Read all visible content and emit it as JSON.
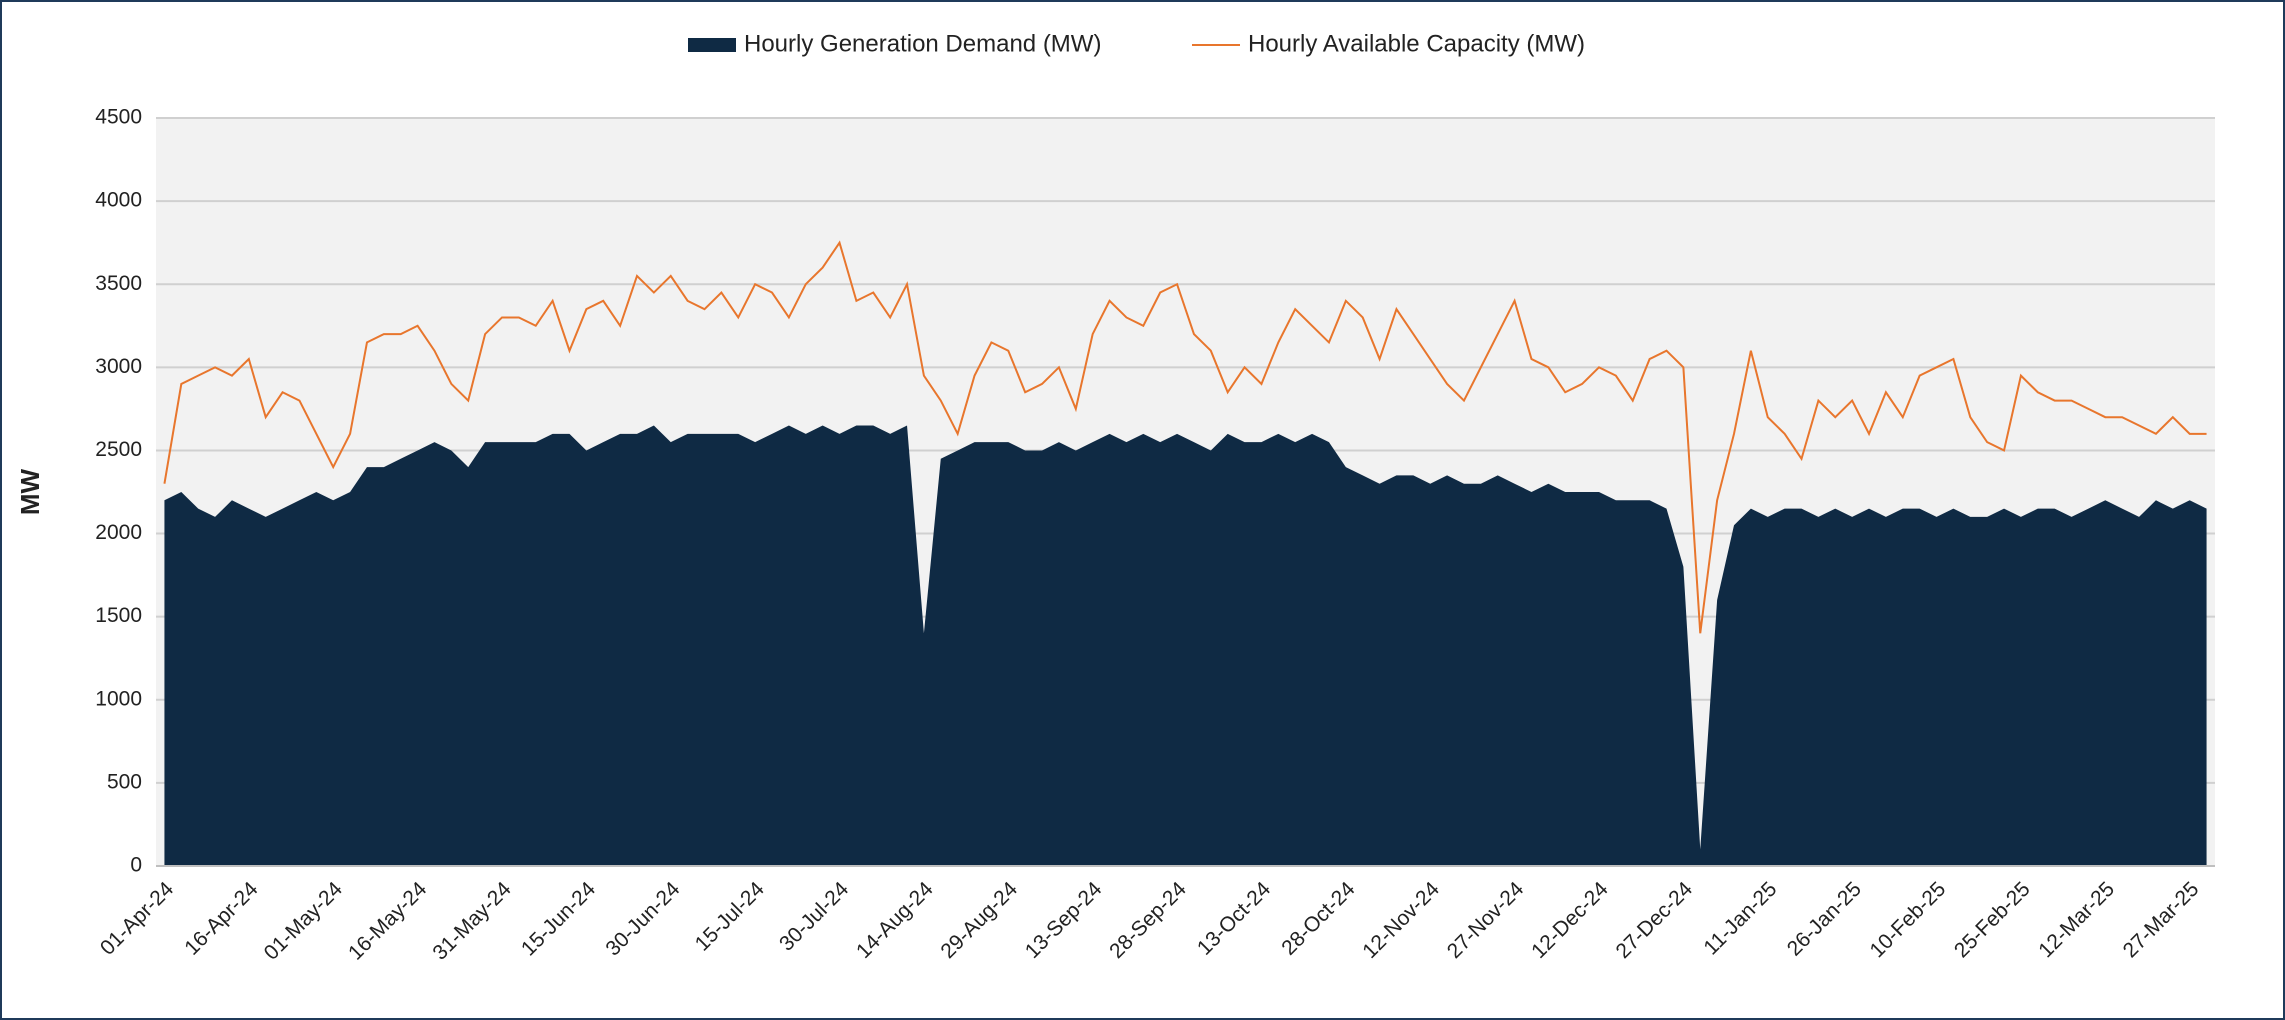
{
  "chart_data": {
    "type": "area-line",
    "y_label": "MW",
    "categories": [
      "01-Apr-24",
      null,
      null,
      null,
      null,
      "16-Apr-24",
      null,
      null,
      null,
      null,
      "01-May-24",
      null,
      null,
      null,
      null,
      "16-May-24",
      null,
      null,
      null,
      null,
      "31-May-24",
      null,
      null,
      null,
      null,
      "15-Jun-24",
      null,
      null,
      null,
      null,
      "30-Jun-24",
      null,
      null,
      null,
      null,
      "15-Jul-24",
      null,
      null,
      null,
      null,
      "30-Jul-24",
      null,
      null,
      null,
      null,
      "14-Aug-24",
      null,
      null,
      null,
      null,
      "29-Aug-24",
      null,
      null,
      null,
      null,
      "13-Sep-24",
      null,
      null,
      null,
      null,
      "28-Sep-24",
      null,
      null,
      null,
      null,
      "13-Oct-24",
      null,
      null,
      null,
      null,
      "28-Oct-24",
      null,
      null,
      null,
      null,
      "12-Nov-24",
      null,
      null,
      null,
      null,
      "27-Nov-24",
      null,
      null,
      null,
      null,
      "12-Dec-24",
      null,
      null,
      null,
      null,
      "27-Dec-24",
      null,
      null,
      null,
      null,
      "11-Jan-25",
      null,
      null,
      null,
      null,
      "26-Jan-25",
      null,
      null,
      null,
      null,
      "10-Feb-25",
      null,
      null,
      null,
      null,
      "25-Feb-25",
      null,
      null,
      null,
      null,
      "12-Mar-25",
      null,
      null,
      null,
      null,
      "27-Mar-25",
      null
    ],
    "series": [
      {
        "name": "Hourly Generation Demand (MW)",
        "color": "#0f2a44",
        "kind": "area",
        "values": [
          2200,
          2250,
          2150,
          2100,
          2200,
          2150,
          2100,
          2150,
          2200,
          2250,
          2200,
          2250,
          2400,
          2400,
          2450,
          2500,
          2550,
          2500,
          2400,
          2550,
          2550,
          2550,
          2550,
          2600,
          2600,
          2500,
          2550,
          2600,
          2600,
          2650,
          2550,
          2600,
          2600,
          2600,
          2600,
          2550,
          2600,
          2650,
          2600,
          2650,
          2600,
          2650,
          2650,
          2600,
          2650,
          1400,
          2450,
          2500,
          2550,
          2550,
          2550,
          2500,
          2500,
          2550,
          2500,
          2550,
          2600,
          2550,
          2600,
          2550,
          2600,
          2550,
          2500,
          2600,
          2550,
          2550,
          2600,
          2550,
          2600,
          2550,
          2400,
          2350,
          2300,
          2350,
          2350,
          2300,
          2350,
          2300,
          2300,
          2350,
          2300,
          2250,
          2300,
          2250,
          2250,
          2250,
          2200,
          2200,
          2200,
          2150,
          1800,
          100,
          1600,
          2050,
          2150,
          2100,
          2150,
          2150,
          2100,
          2150,
          2100,
          2150,
          2100,
          2150,
          2150,
          2100,
          2150,
          2100,
          2100,
          2150,
          2100,
          2150,
          2150,
          2100,
          2150,
          2200,
          2150,
          2100,
          2200,
          2150,
          2200,
          2150
        ]
      },
      {
        "name": "Hourly Available Capacity (MW)",
        "color": "#e8762d",
        "kind": "line",
        "values": [
          2300,
          2900,
          2950,
          3000,
          2950,
          3050,
          2700,
          2850,
          2800,
          2600,
          2400,
          2600,
          3150,
          3200,
          3200,
          3250,
          3100,
          2900,
          2800,
          3200,
          3300,
          3300,
          3250,
          3400,
          3100,
          3350,
          3400,
          3250,
          3550,
          3450,
          3550,
          3400,
          3350,
          3450,
          3300,
          3500,
          3450,
          3300,
          3500,
          3600,
          3750,
          3400,
          3450,
          3300,
          3500,
          2950,
          2800,
          2600,
          2950,
          3150,
          3100,
          2850,
          2900,
          3000,
          2750,
          3200,
          3400,
          3300,
          3250,
          3450,
          3500,
          3200,
          3100,
          2850,
          3000,
          2900,
          3150,
          3350,
          3250,
          3150,
          3400,
          3300,
          3050,
          3350,
          3200,
          3050,
          2900,
          2800,
          3000,
          3200,
          3400,
          3050,
          3000,
          2850,
          2900,
          3000,
          2950,
          2800,
          3050,
          3100,
          3000,
          1400,
          2200,
          2600,
          3100,
          2700,
          2600,
          2450,
          2800,
          2700,
          2800,
          2600,
          2850,
          2700,
          2950,
          3000,
          3050,
          2700,
          2550,
          2500,
          2950,
          2850,
          2800,
          2800,
          2750,
          2700,
          2700,
          2650,
          2600,
          2700,
          2600,
          2600
        ]
      }
    ],
    "ylim": [
      0,
      4500
    ],
    "yticks": [
      0,
      500,
      1000,
      1500,
      2000,
      2500,
      3000,
      3500,
      4000,
      4500
    ],
    "grid": true,
    "legend": "top"
  }
}
